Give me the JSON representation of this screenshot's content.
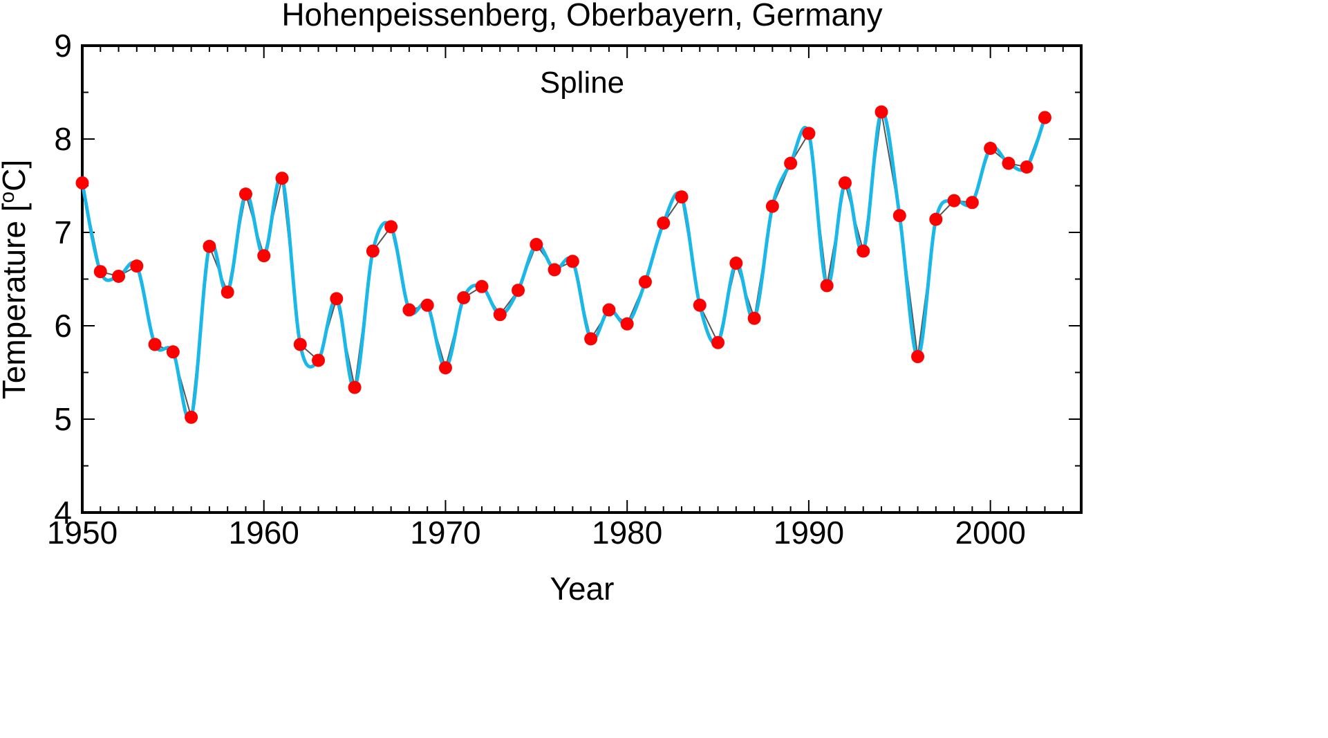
{
  "chart_data": {
    "type": "line",
    "title": "Hohenpeissenberg, Oberbayern, Germany",
    "annotation": "Spline",
    "xlabel": "Year",
    "ylabel_main": "Temperature [",
    "ylabel_sup": "o",
    "ylabel_end": "C]",
    "xlim": [
      1950,
      2005
    ],
    "ylim": [
      4,
      9
    ],
    "x_ticks": [
      "1950",
      "1960",
      "1970",
      "1980",
      "1990",
      "2000"
    ],
    "y_ticks": [
      "4",
      "5",
      "6",
      "7",
      "8",
      "9"
    ],
    "grid": false,
    "colors": {
      "data_line": "#555555",
      "spline": "#1ab8e8",
      "markers": "#ff0000"
    },
    "x": [
      1950,
      1951,
      1952,
      1953,
      1954,
      1955,
      1956,
      1957,
      1958,
      1959,
      1960,
      1961,
      1962,
      1963,
      1964,
      1965,
      1966,
      1967,
      1968,
      1969,
      1970,
      1971,
      1972,
      1973,
      1974,
      1975,
      1976,
      1977,
      1978,
      1979,
      1980,
      1981,
      1982,
      1983,
      1984,
      1985,
      1986,
      1987,
      1988,
      1989,
      1990,
      1991,
      1992,
      1993,
      1994,
      1995,
      1996,
      1997,
      1998,
      1999,
      2000,
      2001,
      2002,
      2003
    ],
    "series": [
      {
        "values": [
          7.53,
          6.58,
          6.53,
          6.64,
          5.8,
          5.72,
          5.02,
          6.85,
          6.36,
          7.41,
          6.75,
          7.58,
          5.8,
          5.63,
          6.29,
          5.34,
          6.8,
          7.06,
          6.17,
          6.22,
          5.55,
          6.3,
          6.42,
          6.12,
          6.38,
          6.87,
          6.6,
          6.69,
          5.86,
          6.17,
          6.02,
          6.47,
          7.1,
          7.38,
          6.22,
          5.82,
          6.67,
          6.08,
          7.28,
          7.74,
          8.06,
          6.43,
          7.53,
          6.8,
          8.29,
          7.18,
          5.67,
          7.14,
          7.34,
          7.32,
          7.9,
          7.74,
          7.7,
          8.23
        ]
      }
    ]
  }
}
